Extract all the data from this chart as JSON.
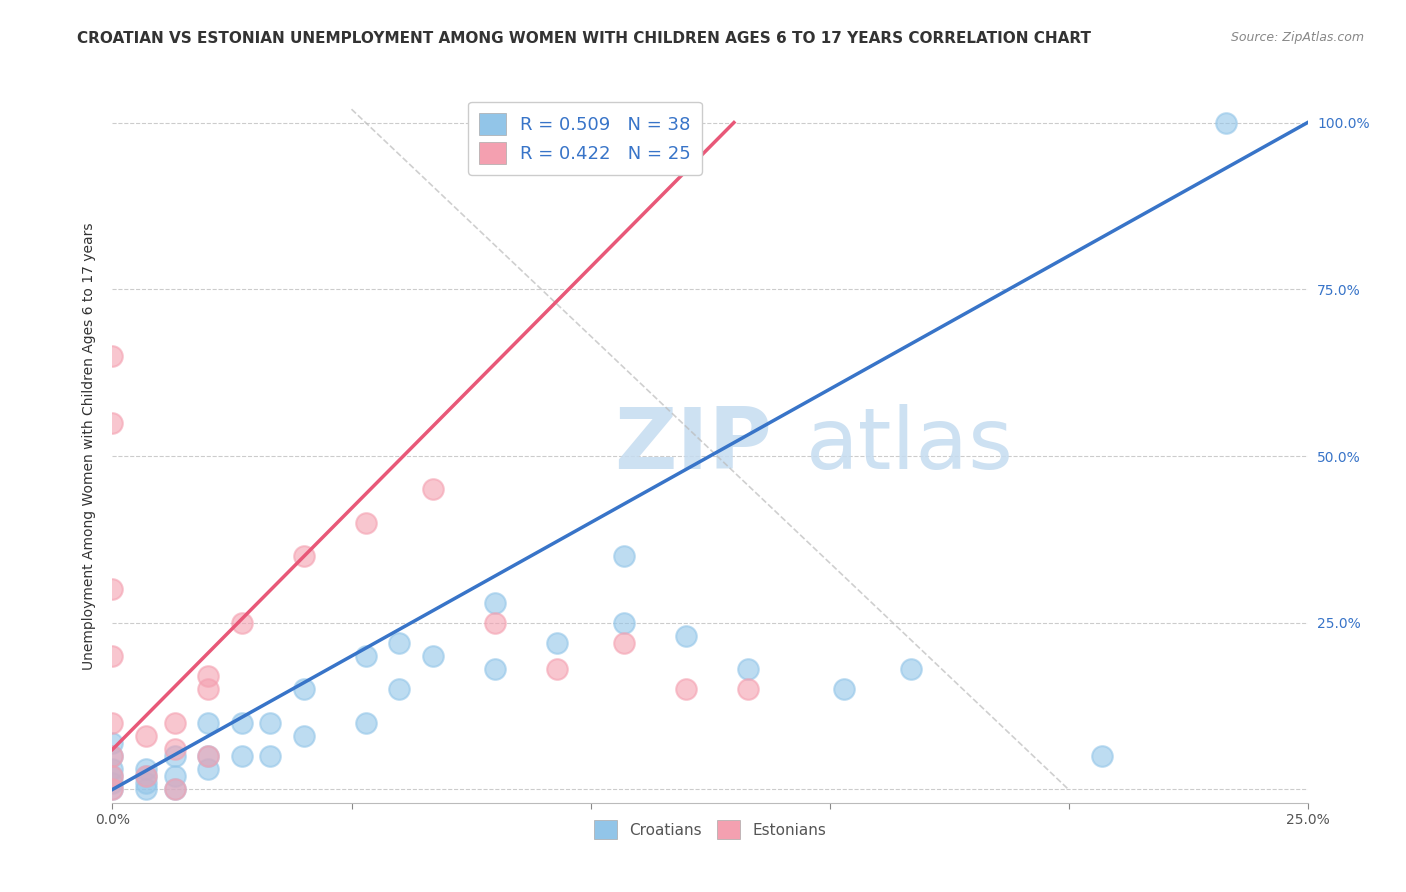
{
  "title": "CROATIAN VS ESTONIAN UNEMPLOYMENT AMONG WOMEN WITH CHILDREN AGES 6 TO 17 YEARS CORRELATION CHART",
  "source": "Source: ZipAtlas.com",
  "ylabel": "Unemployment Among Women with Children Ages 6 to 17 years",
  "xlim": [
    0.0,
    0.25
  ],
  "ylim": [
    -0.02,
    1.05
  ],
  "croatian_R": 0.509,
  "croatian_N": 38,
  "estonian_R": 0.422,
  "estonian_N": 25,
  "croatian_color": "#92C5E8",
  "estonian_color": "#F4A0B0",
  "croatian_line_color": "#3874C8",
  "estonian_line_color": "#E85878",
  "croatian_line_x": [
    0.0,
    0.25
  ],
  "croatian_line_y": [
    0.0,
    1.0
  ],
  "estonian_line_x": [
    0.0,
    0.13
  ],
  "estonian_line_y": [
    0.06,
    1.0
  ],
  "ref_line_x": [
    0.0,
    0.25
  ],
  "ref_line_y": [
    1.0,
    0.0
  ],
  "background_color": "#FFFFFF",
  "croatian_scatter_x": [
    0.0,
    0.0,
    0.0,
    0.0,
    0.0,
    0.0,
    0.007,
    0.007,
    0.007,
    0.007,
    0.013,
    0.013,
    0.013,
    0.02,
    0.02,
    0.02,
    0.027,
    0.027,
    0.033,
    0.033,
    0.04,
    0.04,
    0.053,
    0.053,
    0.06,
    0.06,
    0.067,
    0.08,
    0.08,
    0.093,
    0.107,
    0.107,
    0.12,
    0.133,
    0.153,
    0.167,
    0.207,
    0.233
  ],
  "croatian_scatter_y": [
    0.0,
    0.01,
    0.02,
    0.03,
    0.05,
    0.07,
    0.0,
    0.01,
    0.02,
    0.03,
    0.0,
    0.02,
    0.05,
    0.03,
    0.05,
    0.1,
    0.05,
    0.1,
    0.05,
    0.1,
    0.08,
    0.15,
    0.1,
    0.2,
    0.15,
    0.22,
    0.2,
    0.18,
    0.28,
    0.22,
    0.25,
    0.35,
    0.23,
    0.18,
    0.15,
    0.18,
    0.05,
    1.0
  ],
  "estonian_scatter_x": [
    0.0,
    0.0,
    0.0,
    0.0,
    0.0,
    0.0,
    0.0,
    0.0,
    0.007,
    0.007,
    0.013,
    0.013,
    0.02,
    0.02,
    0.027,
    0.04,
    0.053,
    0.067,
    0.08,
    0.093,
    0.107,
    0.12,
    0.133,
    0.013,
    0.02
  ],
  "estonian_scatter_y": [
    0.0,
    0.02,
    0.05,
    0.1,
    0.2,
    0.3,
    0.55,
    0.65,
    0.02,
    0.08,
    0.0,
    0.06,
    0.05,
    0.15,
    0.25,
    0.35,
    0.4,
    0.45,
    0.25,
    0.18,
    0.22,
    0.15,
    0.15,
    0.1,
    0.17
  ],
  "grid_color": "#CCCCCC",
  "title_fontsize": 11,
  "axis_label_fontsize": 10,
  "tick_fontsize": 10,
  "legend_fontsize": 13
}
